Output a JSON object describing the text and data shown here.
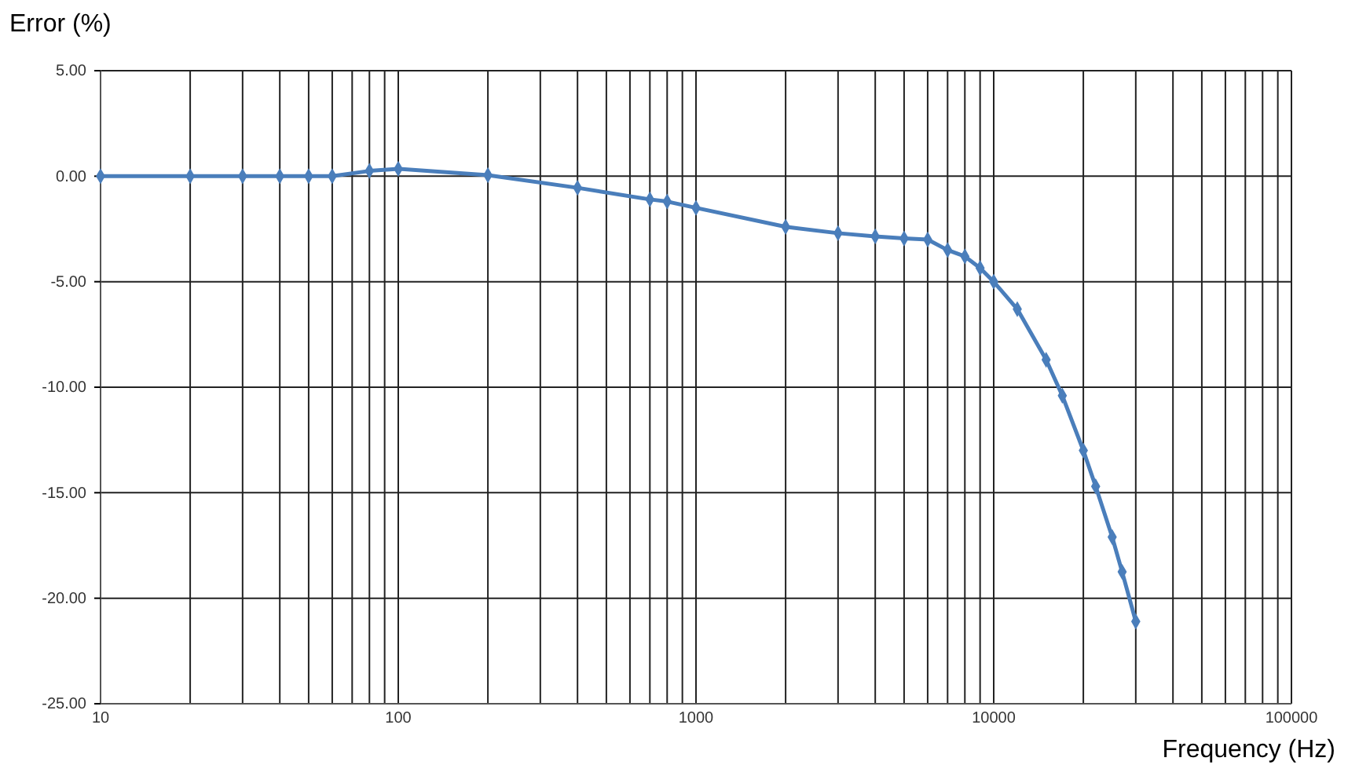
{
  "chart_data": {
    "type": "line",
    "xlabel": "Frequency (Hz)",
    "ylabel": "Error (%)",
    "log": "x",
    "xlim": [
      10,
      100000
    ],
    "ylim": [
      -25,
      5
    ],
    "xticks": [
      10,
      {
        "value": 20,
        "label": null
      },
      {
        "value": 30,
        "label": null
      },
      {
        "value": 40,
        "label": null
      },
      {
        "value": 50,
        "label": null
      },
      {
        "value": 60,
        "label": null
      },
      {
        "value": 70,
        "label": null
      },
      {
        "value": 80,
        "label": null
      },
      {
        "value": 90,
        "label": null
      },
      100,
      {
        "value": 200,
        "label": null
      },
      {
        "value": 300,
        "label": null
      },
      {
        "value": 400,
        "label": null
      },
      {
        "value": 500,
        "label": null
      },
      {
        "value": 600,
        "label": null
      },
      {
        "value": 700,
        "label": null
      },
      {
        "value": 800,
        "label": null
      },
      {
        "value": 900,
        "label": null
      },
      1000,
      {
        "value": 2000,
        "label": null
      },
      {
        "value": 3000,
        "label": null
      },
      {
        "value": 4000,
        "label": null
      },
      {
        "value": 5000,
        "label": null
      },
      {
        "value": 6000,
        "label": null
      },
      {
        "value": 7000,
        "label": null
      },
      {
        "value": 8000,
        "label": null
      },
      {
        "value": 9000,
        "label": null
      },
      10000,
      {
        "value": 20000,
        "label": null
      },
      {
        "value": 30000,
        "label": null
      },
      {
        "value": 40000,
        "label": null
      },
      {
        "value": 50000,
        "label": null
      },
      {
        "value": 60000,
        "label": null
      },
      {
        "value": 70000,
        "label": null
      },
      {
        "value": 80000,
        "label": null
      },
      {
        "value": 90000,
        "label": null
      },
      100000
    ],
    "yticks": [
      {
        "value": 5,
        "label": "5.00"
      },
      {
        "value": 0,
        "label": "0.00"
      },
      {
        "value": -5,
        "label": "-5.00"
      },
      {
        "value": -10,
        "label": "-10.00"
      },
      {
        "value": -15,
        "label": "-15.00"
      },
      {
        "value": -20,
        "label": "-20.00"
      },
      {
        "value": -25,
        "label": "-25.00"
      }
    ],
    "grid": true,
    "marker": "diamond",
    "line_style": "solid",
    "x": [
      10,
      20,
      30,
      40,
      50,
      60,
      80,
      100,
      200,
      400,
      700,
      800,
      1000,
      2000,
      3000,
      4000,
      5000,
      6000,
      7000,
      8000,
      9000,
      10000,
      12000,
      15000,
      17000,
      20000,
      22000,
      25000,
      27000,
      30000
    ],
    "series": [
      {
        "color": "#4a7ebb",
        "values": [
          0,
          0,
          0,
          0,
          0,
          0,
          0.25,
          0.35,
          0.05,
          -0.55,
          -1.1,
          -1.2,
          -1.5,
          -2.4,
          -2.7,
          -2.85,
          -2.95,
          -3.0,
          -3.5,
          -3.8,
          -4.35,
          -5.0,
          -6.3,
          -8.7,
          -10.4,
          -13.0,
          -14.7,
          -17.1,
          -18.75,
          -21.1
        ]
      }
    ]
  }
}
